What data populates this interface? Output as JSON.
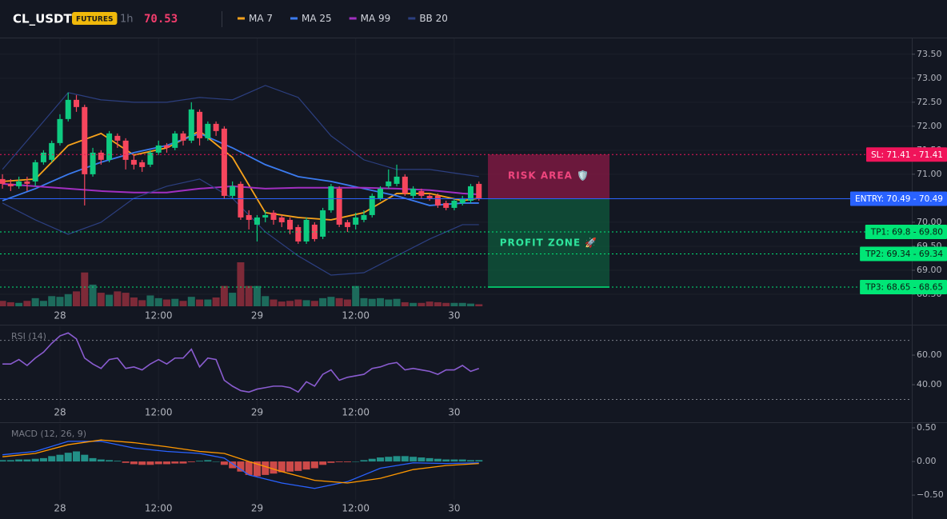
{
  "header": {
    "symbol": "CL_USDT",
    "market": "FUTURES",
    "interval": "1h",
    "price": 70.53
  },
  "chart_data": [
    {
      "type": "candlestick",
      "xlim": [
        -0.3,
        110.7
      ],
      "xticks": [
        {
          "value": 7,
          "label": "28"
        },
        {
          "value": 19,
          "label": "12:00"
        },
        {
          "value": 31,
          "label": "29"
        },
        {
          "value": 43,
          "label": "12:00"
        },
        {
          "value": 55,
          "label": "30"
        }
      ],
      "ylim": [
        68.25,
        73.83
      ],
      "yticks": [
        {
          "value": 73.5,
          "label": "73.50"
        },
        {
          "value": 73,
          "label": "73.00"
        },
        {
          "value": 72.5,
          "label": "72.50"
        },
        {
          "value": 72,
          "label": "72.00"
        },
        {
          "value": 71.5,
          "label": "71.50"
        },
        {
          "value": 71,
          "label": "71.00"
        },
        {
          "value": 70.5,
          "label": "70.50"
        },
        {
          "value": 70,
          "label": "70.00"
        },
        {
          "value": 69.5,
          "label": "69.50"
        },
        {
          "value": 69,
          "label": "69.00"
        },
        {
          "value": 68.5,
          "label": "68.50"
        }
      ],
      "grid": true,
      "up_color": "#0ecb81",
      "down_color": "#f6465d",
      "volume_up_color": "#1d6b5c",
      "volume_down_color": "#7d2a38",
      "open": [
        70.9,
        70.8,
        70.75,
        70.85,
        70.85,
        71.25,
        71.3,
        71.65,
        72.15,
        72.55,
        72.4,
        71.0,
        71.45,
        71.3,
        71.8,
        71.7,
        71.3,
        71.25,
        71.2,
        71.45,
        71.6,
        71.55,
        71.85,
        71.7,
        72.3,
        71.75,
        72.05,
        71.95,
        70.55,
        70.8,
        70.15,
        69.95,
        70.1,
        70.2,
        70.1,
        70.05,
        69.9,
        69.6,
        69.95,
        69.7,
        70.25,
        70.7,
        70.0,
        69.95,
        70.05,
        70.15,
        70.5,
        70.75,
        70.8,
        70.95,
        70.55,
        70.65,
        70.55,
        70.55,
        70.4,
        70.3,
        70.4,
        70.45,
        70.8
      ],
      "high": [
        71.0,
        70.9,
        70.95,
        70.95,
        71.3,
        71.5,
        71.7,
        72.25,
        72.7,
        72.65,
        72.45,
        71.55,
        71.5,
        71.9,
        71.85,
        71.75,
        71.4,
        71.3,
        71.5,
        71.7,
        71.65,
        71.9,
        71.9,
        72.5,
        72.35,
        72.1,
        72.1,
        72.0,
        70.85,
        70.85,
        70.25,
        70.15,
        70.25,
        70.25,
        70.15,
        70.1,
        69.95,
        70.1,
        70.0,
        70.3,
        70.8,
        70.75,
        70.05,
        70.2,
        70.25,
        70.6,
        70.75,
        71.1,
        71.2,
        71.0,
        70.75,
        70.7,
        70.6,
        70.6,
        70.45,
        70.5,
        70.55,
        70.8,
        70.85
      ],
      "low": [
        70.7,
        70.65,
        70.7,
        70.65,
        70.75,
        71.2,
        71.25,
        71.6,
        72.1,
        72.3,
        70.35,
        70.95,
        71.2,
        71.25,
        71.55,
        71.1,
        71.1,
        71.05,
        71.15,
        71.4,
        71.45,
        71.5,
        71.6,
        71.65,
        71.6,
        71.7,
        71.8,
        70.5,
        70.5,
        70.05,
        69.85,
        69.6,
        70.0,
        69.95,
        69.9,
        69.75,
        69.55,
        69.55,
        69.6,
        69.65,
        70.2,
        69.9,
        69.8,
        69.85,
        70.0,
        70.1,
        70.45,
        70.7,
        70.75,
        70.55,
        70.5,
        70.5,
        70.45,
        70.3,
        70.25,
        70.25,
        70.35,
        70.4,
        70.45
      ],
      "close": [
        70.8,
        70.75,
        70.85,
        70.8,
        71.25,
        71.45,
        71.65,
        72.15,
        72.55,
        72.4,
        71.0,
        71.45,
        71.3,
        71.85,
        71.7,
        71.3,
        71.2,
        71.15,
        71.45,
        71.6,
        71.55,
        71.85,
        71.7,
        72.35,
        71.75,
        72.05,
        71.9,
        70.55,
        70.75,
        70.1,
        70.05,
        70.1,
        70.15,
        70.05,
        70.0,
        69.85,
        69.6,
        70.05,
        69.65,
        70.25,
        70.75,
        69.95,
        69.9,
        70.1,
        70.15,
        70.55,
        70.7,
        70.85,
        70.95,
        70.6,
        70.7,
        70.55,
        70.5,
        70.35,
        70.3,
        70.45,
        70.5,
        70.75,
        70.5
      ],
      "volume": [
        8,
        6,
        5,
        8,
        12,
        8,
        15,
        14,
        18,
        22,
        50,
        32,
        20,
        17,
        22,
        20,
        13,
        9,
        16,
        12,
        10,
        11,
        8,
        14,
        10,
        10,
        13,
        30,
        20,
        65,
        30,
        30,
        15,
        10,
        7,
        8,
        10,
        9,
        8,
        12,
        14,
        12,
        10,
        30,
        12,
        11,
        12,
        10,
        11,
        6,
        5,
        5,
        7,
        6,
        5,
        5,
        5,
        4,
        3
      ],
      "overlays": [
        {
          "name": "MA 7",
          "color": "#f7a21b",
          "x": [
            0,
            4,
            8,
            12,
            16,
            20,
            24,
            28,
            32,
            36,
            40,
            44,
            48,
            52,
            56,
            58
          ],
          "values": [
            70.85,
            70.9,
            71.6,
            71.85,
            71.4,
            71.55,
            71.9,
            71.35,
            70.2,
            70.1,
            70.05,
            70.2,
            70.6,
            70.6,
            70.45,
            70.5
          ]
        },
        {
          "name": "MA 25",
          "color": "#3b7bf0",
          "x": [
            0,
            4,
            8,
            12,
            16,
            20,
            24,
            28,
            32,
            36,
            40,
            44,
            48,
            52,
            56,
            58
          ],
          "values": [
            70.45,
            70.7,
            71.0,
            71.25,
            71.45,
            71.6,
            71.85,
            71.55,
            71.2,
            70.95,
            70.85,
            70.7,
            70.55,
            70.35,
            70.4,
            70.4
          ]
        },
        {
          "name": "MA 99",
          "color": "#a12fc0",
          "x": [
            0,
            4,
            8,
            12,
            16,
            20,
            24,
            28,
            32,
            36,
            40,
            44,
            48,
            52,
            56,
            58
          ],
          "values": [
            70.8,
            70.75,
            70.7,
            70.65,
            70.62,
            70.62,
            70.7,
            70.75,
            70.7,
            70.72,
            70.72,
            70.72,
            70.7,
            70.67,
            70.6,
            70.58
          ]
        },
        {
          "name": "BB 20",
          "color": "#2c3f80",
          "x": [
            0,
            4,
            8,
            12,
            16,
            20,
            24,
            28,
            32,
            36,
            40,
            44,
            48,
            52,
            56,
            58
          ],
          "upper": [
            71.1,
            71.9,
            72.7,
            72.55,
            72.5,
            72.5,
            72.6,
            72.55,
            72.85,
            72.6,
            71.8,
            71.3,
            71.1,
            71.1,
            71.0,
            70.95
          ],
          "lower": [
            70.4,
            70.05,
            69.75,
            70.0,
            70.5,
            70.75,
            70.9,
            70.5,
            69.8,
            69.3,
            68.9,
            68.95,
            69.3,
            69.65,
            69.95,
            69.95
          ]
        }
      ],
      "levels": [
        {
          "value": 71.41,
          "label": "SL: 71.41 - 71.41",
          "color": "#f0145a",
          "text_color": "#ffffff",
          "line_style": "dotted"
        },
        {
          "value": 70.49,
          "label": "ENTRY: 70.49 - 70.49",
          "color": "#2962ff",
          "text_color": "#ffffff",
          "line_style": "solid"
        },
        {
          "value": 69.8,
          "label": "TP1: 69.8 - 69.80",
          "color": "#00e676",
          "text_color": "#0b1a12",
          "line_style": "dotted"
        },
        {
          "value": 69.34,
          "label": "TP2: 69.34 - 69.34",
          "color": "#00e676",
          "text_color": "#0b1a12",
          "line_style": "dotted"
        },
        {
          "value": 68.65,
          "label": "TP3: 68.65 - 68.65",
          "color": "#00e676",
          "text_color": "#0b1a12",
          "line_style": "dotted"
        }
      ],
      "zones": [
        {
          "label": "RISK AREA 🛡️",
          "color": "#8a1a45",
          "text_color": "#f0457e"
        },
        {
          "label": "PROFIT ZONE 🚀",
          "color": "#0f5a3c",
          "text_color": "#2ee59d"
        }
      ]
    },
    {
      "type": "line",
      "label": "RSI (14)",
      "xlim": [
        -0.3,
        110.7
      ],
      "xticks": [
        {
          "value": 7,
          "label": "28"
        },
        {
          "value": 19,
          "label": "12:00"
        },
        {
          "value": 31,
          "label": "29"
        },
        {
          "value": 43,
          "label": "12:00"
        },
        {
          "value": 55,
          "label": "30"
        }
      ],
      "ylim": [
        14.6,
        79.5
      ],
      "yticks": [
        {
          "value": 60,
          "label": "60.00"
        },
        {
          "value": 40,
          "label": "40.00"
        }
      ],
      "levels": [
        70,
        30
      ],
      "color": "#8a5cd0",
      "values": [
        54,
        54,
        57,
        53,
        58,
        62,
        68,
        73,
        75,
        71,
        58,
        54,
        51,
        57,
        58,
        51,
        52,
        50,
        54,
        57,
        54,
        58,
        58,
        64,
        52,
        58,
        57,
        43,
        39,
        36,
        35,
        37,
        38,
        39,
        39,
        38,
        35,
        42,
        39,
        47,
        50,
        43,
        45,
        46,
        47,
        51,
        52,
        54,
        55,
        50,
        51,
        50,
        49,
        47,
        50,
        50,
        53,
        49,
        51
      ]
    },
    {
      "type": "macd",
      "label": "MACD (12, 26, 9)",
      "xlim": [
        -0.3,
        110.7
      ],
      "xticks": [
        {
          "value": 7,
          "label": "28"
        },
        {
          "value": 19,
          "label": "12:00"
        },
        {
          "value": 31,
          "label": "29"
        },
        {
          "value": 43,
          "label": "12:00"
        },
        {
          "value": 55,
          "label": "30"
        }
      ],
      "ylim": [
        -0.57,
        0.56
      ],
      "yticks": [
        {
          "value": 0.5,
          "label": "0.50"
        },
        {
          "value": 0,
          "label": "0.00"
        },
        {
          "value": -0.5,
          "label": "−0.50"
        }
      ],
      "up_color": "#26a69a",
      "down_color": "#ef5350",
      "histogram": [
        0.02,
        0.02,
        0.03,
        0.03,
        0.04,
        0.05,
        0.08,
        0.1,
        0.13,
        0.15,
        0.1,
        0.05,
        0.03,
        0.02,
        0.01,
        -0.02,
        -0.04,
        -0.05,
        -0.05,
        -0.04,
        -0.04,
        -0.03,
        -0.03,
        -0.01,
        0.01,
        0.02,
        0,
        -0.05,
        -0.1,
        -0.15,
        -0.2,
        -0.22,
        -0.2,
        -0.18,
        -0.16,
        -0.15,
        -0.14,
        -0.12,
        -0.1,
        -0.05,
        -0.02,
        -0.01,
        -0.01,
        0,
        0.02,
        0.04,
        0.06,
        0.07,
        0.08,
        0.08,
        0.07,
        0.06,
        0.05,
        0.04,
        0.03,
        0.03,
        0.03,
        0.02,
        0.02
      ],
      "series": [
        {
          "color": "#2962ff",
          "x": [
            0,
            4,
            8,
            12,
            16,
            20,
            24,
            27,
            30,
            34,
            38,
            42,
            46,
            50,
            54,
            58
          ],
          "values": [
            0.1,
            0.15,
            0.3,
            0.3,
            0.2,
            0.15,
            0.12,
            0.05,
            -0.2,
            -0.32,
            -0.4,
            -0.3,
            -0.1,
            -0.02,
            -0.03,
            -0.02
          ]
        },
        {
          "color": "#ff9800",
          "x": [
            0,
            4,
            8,
            12,
            16,
            20,
            24,
            27,
            30,
            34,
            38,
            42,
            46,
            50,
            54,
            58
          ],
          "values": [
            0.07,
            0.12,
            0.25,
            0.32,
            0.28,
            0.22,
            0.15,
            0.12,
            0,
            -0.15,
            -0.28,
            -0.32,
            -0.25,
            -0.12,
            -0.06,
            -0.03
          ]
        }
      ]
    }
  ]
}
